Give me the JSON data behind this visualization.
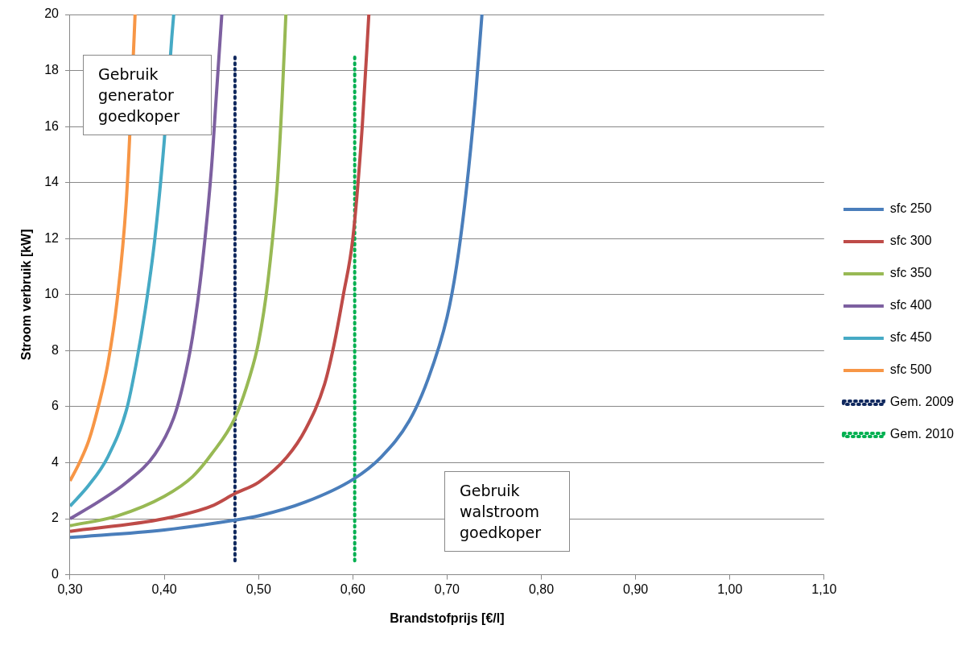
{
  "chart_data": {
    "type": "line",
    "xlabel": "Brandstofprijs [€/l]",
    "ylabel": "Stroom verbruik [kW]",
    "xlim": [
      0.3,
      1.1
    ],
    "ylim": [
      0,
      20
    ],
    "xticks": [
      {
        "value": 0.3,
        "label": "0,30"
      },
      {
        "value": 0.4,
        "label": "0,40"
      },
      {
        "value": 0.5,
        "label": "0,50"
      },
      {
        "value": 0.6,
        "label": "0,60"
      },
      {
        "value": 0.7,
        "label": "0,70"
      },
      {
        "value": 0.8,
        "label": "0,80"
      },
      {
        "value": 0.9,
        "label": "0,90"
      },
      {
        "value": 1.0,
        "label": "1,00"
      },
      {
        "value": 1.1,
        "label": "1,10"
      }
    ],
    "yticks": [
      0,
      2,
      4,
      6,
      8,
      10,
      12,
      14,
      16,
      18,
      20
    ],
    "grid": "y",
    "legend": "right",
    "marker": "none",
    "line_style": "solid",
    "series": [
      {
        "name": "sfc 250",
        "color": "#4a7ebb",
        "x": [
          0.3,
          0.4,
          0.475,
          0.5,
          0.55,
          0.6,
          0.63,
          0.66,
          0.68,
          0.7,
          0.71,
          0.72,
          0.73,
          0.737
        ],
        "values": [
          1.33,
          1.6,
          1.95,
          2.1,
          2.6,
          3.4,
          4.2,
          5.5,
          7,
          9.2,
          11,
          13.6,
          17,
          20
        ]
      },
      {
        "name": "sfc 300",
        "color": "#be4b48",
        "x": [
          0.3,
          0.4,
          0.45,
          0.475,
          0.5,
          0.53,
          0.55,
          0.57,
          0.58,
          0.59,
          0.6,
          0.61,
          0.617
        ],
        "values": [
          1.55,
          2.0,
          2.45,
          2.9,
          3.3,
          4.2,
          5.2,
          6.8,
          8.2,
          10,
          12,
          16,
          20
        ]
      },
      {
        "name": "sfc 350",
        "color": "#98b954",
        "x": [
          0.3,
          0.35,
          0.4,
          0.43,
          0.45,
          0.475,
          0.49,
          0.5,
          0.51,
          0.52,
          0.525,
          0.529
        ],
        "values": [
          1.75,
          2.1,
          2.8,
          3.5,
          4.3,
          5.6,
          7,
          8.3,
          10.5,
          14,
          17,
          20
        ]
      },
      {
        "name": "sfc 400",
        "color": "#7d60a0",
        "x": [
          0.3,
          0.33,
          0.36,
          0.39,
          0.41,
          0.42,
          0.43,
          0.44,
          0.45,
          0.455,
          0.461
        ],
        "values": [
          2.0,
          2.6,
          3.3,
          4.3,
          5.6,
          6.8,
          8.5,
          11,
          14.5,
          17,
          20
        ]
      },
      {
        "name": "sfc 450",
        "color": "#46aac5",
        "x": [
          0.3,
          0.32,
          0.34,
          0.36,
          0.37,
          0.38,
          0.39,
          0.4,
          0.408,
          0.41
        ],
        "values": [
          2.45,
          3.2,
          4.2,
          5.9,
          7.5,
          9.5,
          12,
          15.5,
          19.2,
          20
        ]
      },
      {
        "name": "sfc 500",
        "color": "#f79646",
        "x": [
          0.3,
          0.31,
          0.32,
          0.33,
          0.34,
          0.35,
          0.36,
          0.368,
          0.369
        ],
        "values": [
          3.35,
          4.0,
          4.8,
          6,
          7.5,
          9.8,
          13.5,
          19.2,
          20
        ]
      },
      {
        "name": "Gem. 2009",
        "color": "#10285e",
        "line_style": "dotted",
        "x": [
          0.475,
          0.475
        ],
        "values": [
          0.5,
          18.5
        ]
      },
      {
        "name": "Gem. 2010",
        "color": "#00b050",
        "line_style": "dotted",
        "x": [
          0.602,
          0.602
        ],
        "values": [
          0.5,
          18.5
        ]
      }
    ],
    "annotations": [
      "Gebruik generator goedkoper",
      "Gebruik walstroom goedkoper"
    ]
  }
}
